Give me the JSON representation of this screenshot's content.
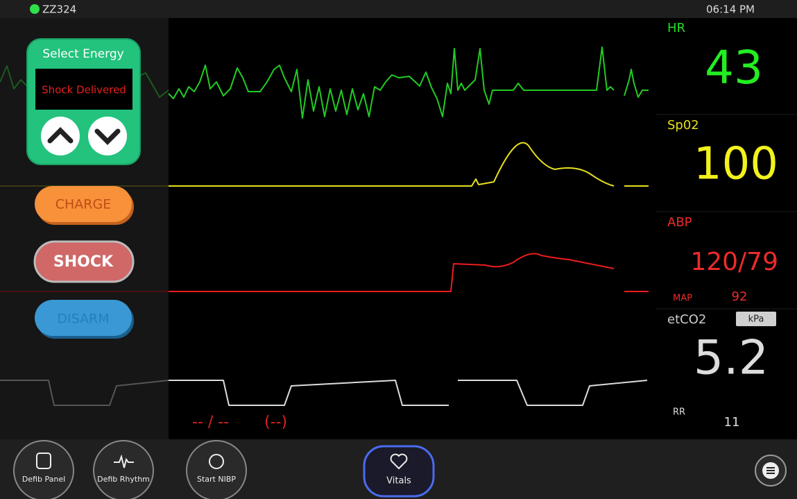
{
  "status_bar": {
    "device_id": "ZZ324",
    "time": "06:14 PM"
  },
  "defib_controls": {
    "energy_title": "Select Energy",
    "energy_display": "Shock Delivered",
    "charge": "CHARGE",
    "shock": "SHOCK",
    "disarm": "DISARM"
  },
  "vitals": {
    "hr": {
      "label": "HR",
      "value": 43
    },
    "spo2": {
      "label": "Sp02",
      "value": 100
    },
    "abp": {
      "label": "ABP",
      "value": "120/79",
      "map_label": "MAP",
      "map_value": 92
    },
    "etco2": {
      "label": "etCO2",
      "unit": "kPa",
      "value": 5.2,
      "rr_label": "RR",
      "rr_value": 11
    }
  },
  "nibp_readout": {
    "pressure": "-- / --",
    "mean": "(--)"
  },
  "toolbar": {
    "buttons": [
      "Defib Panel",
      "Defib Rhythm",
      "Start NIBP",
      "Vitals"
    ]
  }
}
